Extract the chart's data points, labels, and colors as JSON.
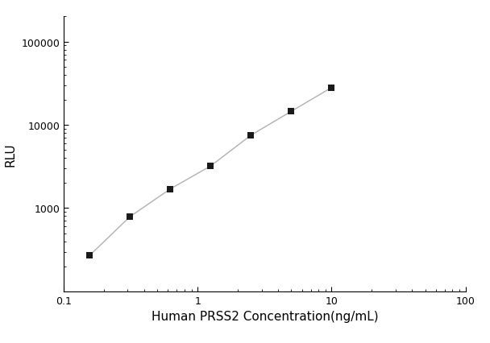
{
  "x_data": [
    0.156,
    0.3125,
    0.625,
    1.25,
    2.5,
    5.0,
    10.0
  ],
  "y_data": [
    270,
    790,
    1700,
    3200,
    7500,
    14500,
    28000
  ],
  "xlabel": "Human PRSS2 Concentration(ng/mL)",
  "ylabel": "RLU",
  "xlim": [
    0.1,
    100
  ],
  "ylim": [
    100,
    200000
  ],
  "x_ticks": [
    0.1,
    1,
    10,
    100
  ],
  "y_ticks": [
    1000,
    10000,
    100000
  ],
  "line_color": "#b0b0b0",
  "marker_color": "#1a1a1a",
  "marker_size": 6,
  "line_width": 1.0,
  "background_color": "#ffffff",
  "xlabel_fontsize": 11,
  "ylabel_fontsize": 11,
  "tick_fontsize": 9
}
